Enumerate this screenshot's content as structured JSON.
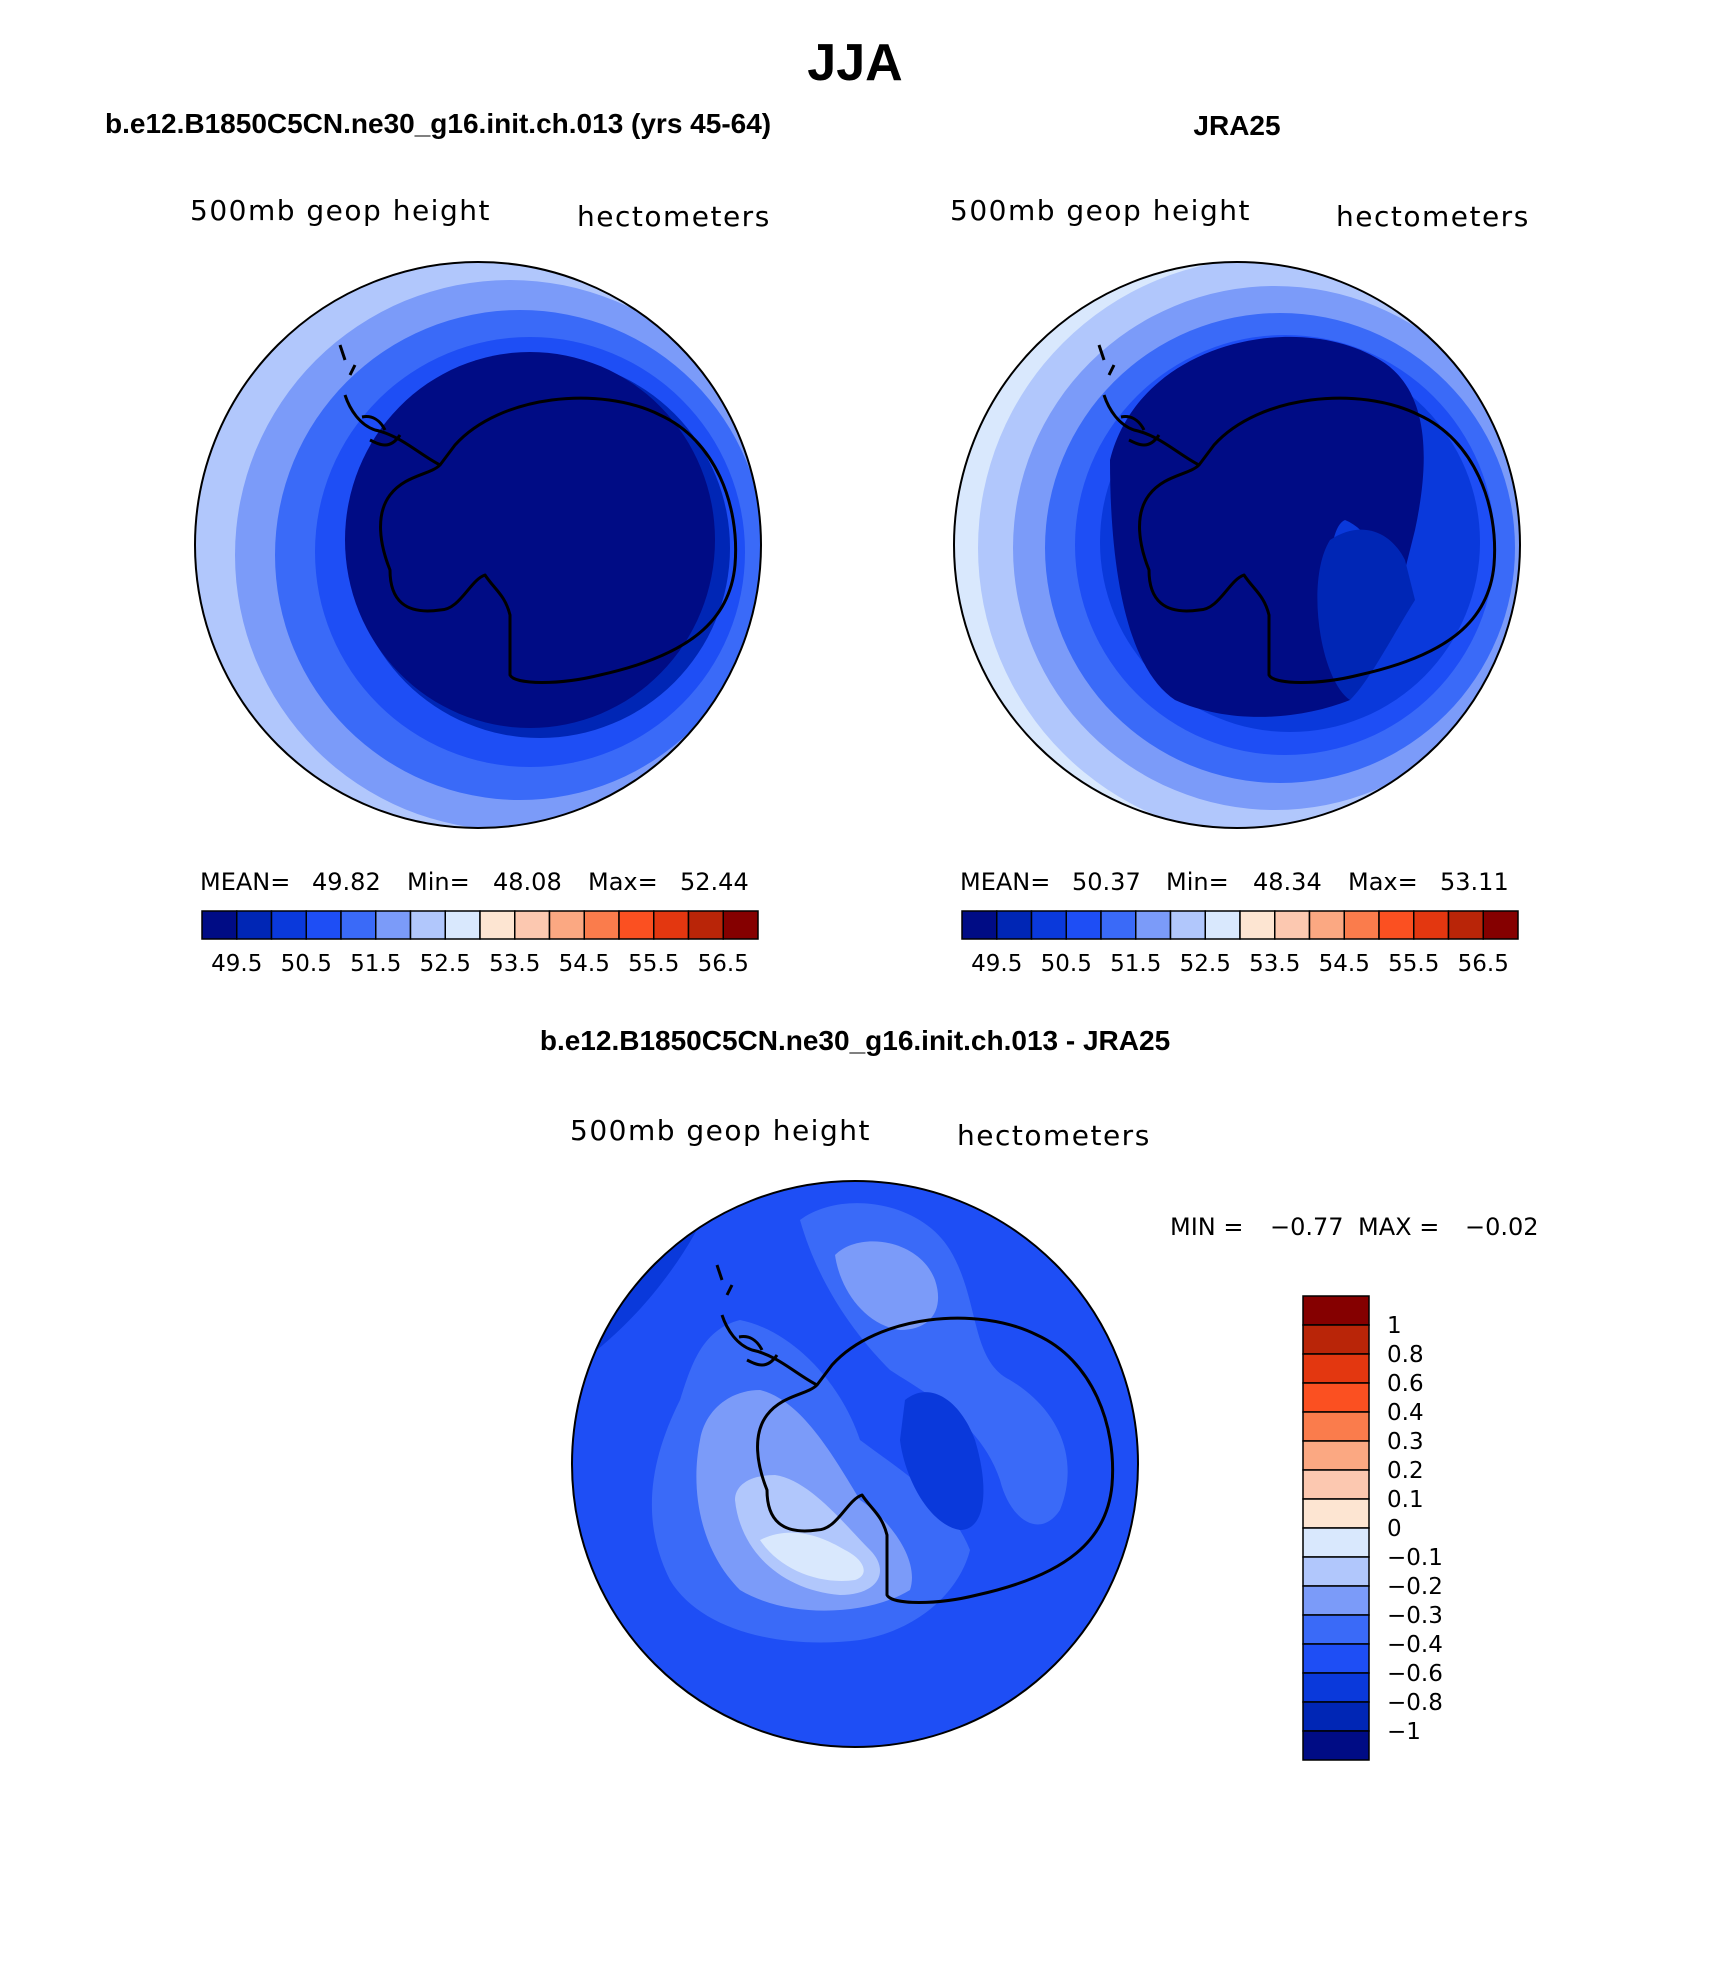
{
  "season": "JJA",
  "colors": {
    "blues": [
      "#000c85",
      "#0026b5",
      "#0a39db",
      "#1e4ef5",
      "#3a6af8",
      "#7b9bf9",
      "#b1c7fc",
      "#d9e8fd"
    ],
    "reds": [
      "#fde5d2",
      "#fcc8b0",
      "#fba882",
      "#fa7c4c",
      "#fb5021",
      "#e33710",
      "#b92508",
      "#850000"
    ]
  },
  "panels": [
    {
      "title": "b.e12.B1850C5CN.ne30_g16.init.ch.013 (yrs 45-64)",
      "left_label": "500mb geop height",
      "right_label": "hectometers",
      "stats": {
        "mean_label": "MEAN=",
        "mean": "49.82",
        "min_label": "Min=",
        "min": "48.08",
        "max_label": "Max=",
        "max": "52.44"
      },
      "colorbar_ticks": [
        "49.5",
        "50.5",
        "51.5",
        "52.5",
        "53.5",
        "54.5",
        "55.5",
        "56.5"
      ]
    },
    {
      "title": "JRA25",
      "left_label": "500mb geop height",
      "right_label": "hectometers",
      "stats": {
        "mean_label": "MEAN=",
        "mean": "50.37",
        "min_label": "Min=",
        "min": "48.34",
        "max_label": "Max=",
        "max": "53.11"
      },
      "colorbar_ticks": [
        "49.5",
        "50.5",
        "51.5",
        "52.5",
        "53.5",
        "54.5",
        "55.5",
        "56.5"
      ]
    },
    {
      "title": "b.e12.B1850C5CN.ne30_g16.init.ch.013 - JRA25",
      "left_label": "500mb geop height",
      "right_label": "hectometers",
      "minmax": {
        "min_label": "MIN =",
        "min": "−0.77",
        "max_label": "MAX =",
        "max": "−0.02"
      },
      "colorbar_ticks": [
        "1",
        "0.8",
        "0.6",
        "0.4",
        "0.3",
        "0.2",
        "0.1",
        "0",
        "−0.1",
        "−0.2",
        "−0.3",
        "−0.4",
        "−0.6",
        "−0.8",
        "−1"
      ]
    }
  ]
}
